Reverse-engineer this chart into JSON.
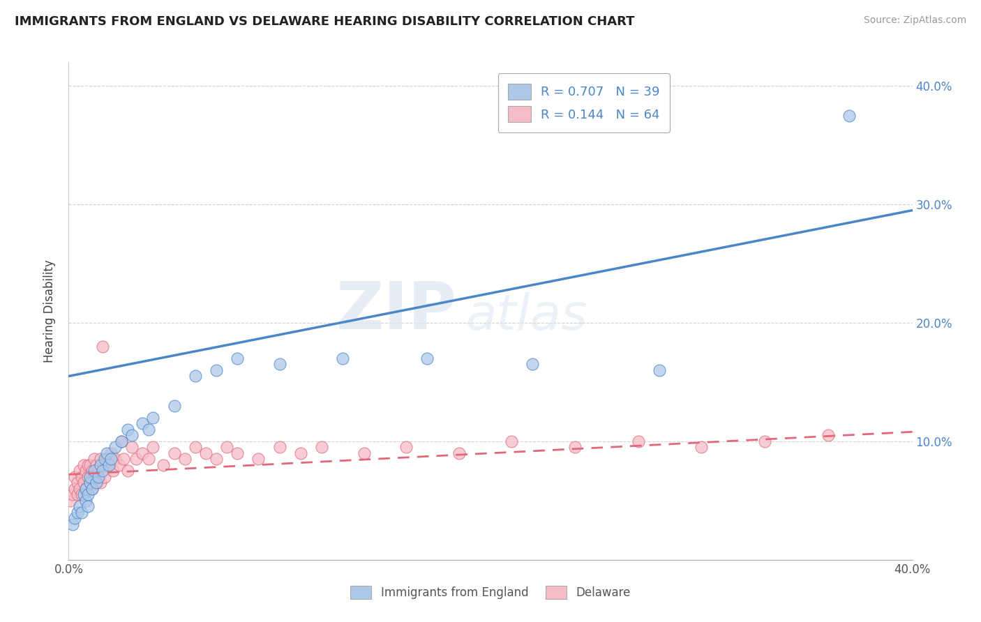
{
  "title": "IMMIGRANTS FROM ENGLAND VS DELAWARE HEARING DISABILITY CORRELATION CHART",
  "source": "Source: ZipAtlas.com",
  "ylabel": "Hearing Disability",
  "xlim": [
    0.0,
    0.4
  ],
  "ylim": [
    0.0,
    0.42
  ],
  "blue_R": 0.707,
  "blue_N": 39,
  "pink_R": 0.144,
  "pink_N": 64,
  "blue_color": "#adc8e8",
  "pink_color": "#f5bcc8",
  "blue_line_color": "#4a86c8",
  "pink_line_color": "#e06878",
  "legend_label_blue": "Immigrants from England",
  "legend_label_pink": "Delaware",
  "watermark_zip": "ZIP",
  "watermark_atlas": "atlas",
  "blue_scatter_x": [
    0.002,
    0.003,
    0.004,
    0.005,
    0.006,
    0.007,
    0.008,
    0.008,
    0.009,
    0.009,
    0.01,
    0.01,
    0.011,
    0.012,
    0.013,
    0.014,
    0.015,
    0.016,
    0.017,
    0.018,
    0.019,
    0.02,
    0.022,
    0.025,
    0.028,
    0.03,
    0.035,
    0.038,
    0.04,
    0.05,
    0.06,
    0.07,
    0.08,
    0.1,
    0.13,
    0.17,
    0.22,
    0.28,
    0.37
  ],
  "blue_scatter_y": [
    0.03,
    0.035,
    0.04,
    0.045,
    0.04,
    0.055,
    0.05,
    0.06,
    0.045,
    0.055,
    0.065,
    0.07,
    0.06,
    0.075,
    0.065,
    0.07,
    0.08,
    0.075,
    0.085,
    0.09,
    0.08,
    0.085,
    0.095,
    0.1,
    0.11,
    0.105,
    0.115,
    0.11,
    0.12,
    0.13,
    0.155,
    0.16,
    0.17,
    0.165,
    0.17,
    0.17,
    0.165,
    0.16,
    0.375
  ],
  "pink_scatter_x": [
    0.001,
    0.002,
    0.003,
    0.003,
    0.004,
    0.004,
    0.005,
    0.005,
    0.006,
    0.006,
    0.007,
    0.007,
    0.008,
    0.008,
    0.009,
    0.009,
    0.01,
    0.01,
    0.011,
    0.011,
    0.012,
    0.012,
    0.013,
    0.013,
    0.014,
    0.015,
    0.015,
    0.016,
    0.017,
    0.018,
    0.019,
    0.02,
    0.021,
    0.022,
    0.024,
    0.025,
    0.026,
    0.028,
    0.03,
    0.032,
    0.035,
    0.038,
    0.04,
    0.045,
    0.05,
    0.055,
    0.06,
    0.065,
    0.07,
    0.075,
    0.08,
    0.09,
    0.1,
    0.11,
    0.12,
    0.14,
    0.16,
    0.185,
    0.21,
    0.24,
    0.27,
    0.3,
    0.33,
    0.36
  ],
  "pink_scatter_y": [
    0.05,
    0.055,
    0.06,
    0.07,
    0.055,
    0.065,
    0.06,
    0.075,
    0.055,
    0.07,
    0.065,
    0.08,
    0.06,
    0.075,
    0.07,
    0.08,
    0.065,
    0.08,
    0.06,
    0.075,
    0.07,
    0.085,
    0.065,
    0.08,
    0.075,
    0.065,
    0.085,
    0.18,
    0.07,
    0.085,
    0.08,
    0.09,
    0.075,
    0.085,
    0.08,
    0.1,
    0.085,
    0.075,
    0.095,
    0.085,
    0.09,
    0.085,
    0.095,
    0.08,
    0.09,
    0.085,
    0.095,
    0.09,
    0.085,
    0.095,
    0.09,
    0.085,
    0.095,
    0.09,
    0.095,
    0.09,
    0.095,
    0.09,
    0.1,
    0.095,
    0.1,
    0.095,
    0.1,
    0.105
  ],
  "blue_line_x0": 0.0,
  "blue_line_y0": 0.155,
  "blue_line_x1": 0.4,
  "blue_line_y1": 0.295,
  "pink_line_x0": 0.0,
  "pink_line_y0": 0.072,
  "pink_line_x1": 0.4,
  "pink_line_y1": 0.108
}
